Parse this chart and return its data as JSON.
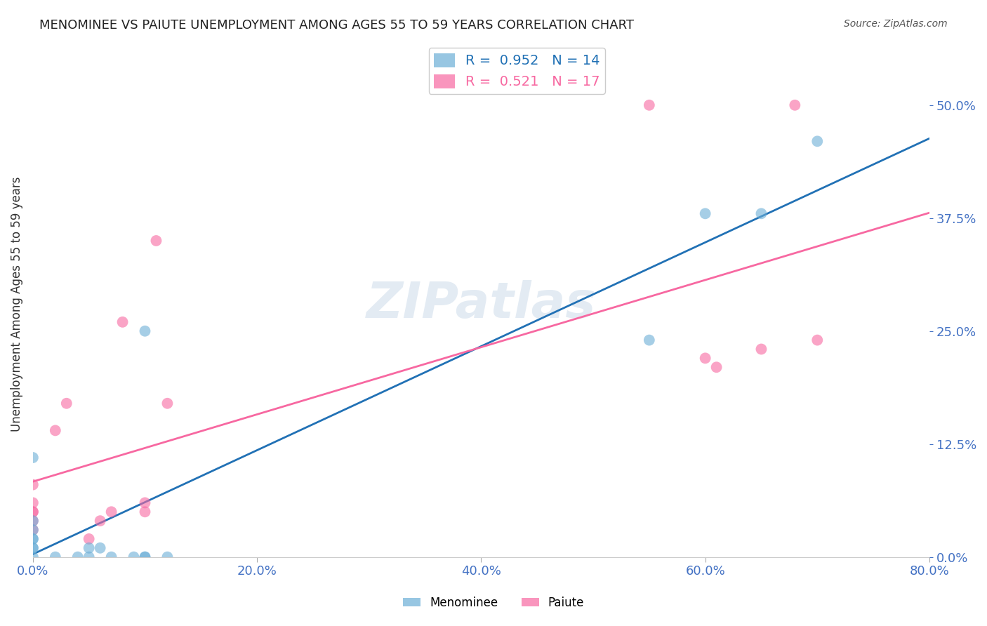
{
  "title": "MENOMINEE VS PAIUTE UNEMPLOYMENT AMONG AGES 55 TO 59 YEARS CORRELATION CHART",
  "source": "Source: ZipAtlas.com",
  "ylabel": "Unemployment Among Ages 55 to 59 years",
  "xlim": [
    0,
    0.8
  ],
  "ylim": [
    0,
    0.56
  ],
  "yticks": [
    0.0,
    0.125,
    0.25,
    0.375,
    0.5
  ],
  "xticks": [
    0.0,
    0.2,
    0.4,
    0.6,
    0.8
  ],
  "menominee_x": [
    0.0,
    0.0,
    0.0,
    0.0,
    0.0,
    0.0,
    0.0,
    0.0,
    0.02,
    0.04,
    0.05,
    0.05,
    0.06,
    0.07,
    0.09,
    0.1,
    0.1,
    0.1,
    0.12,
    0.55,
    0.6,
    0.65,
    0.7
  ],
  "menominee_y": [
    0.0,
    0.01,
    0.01,
    0.02,
    0.02,
    0.03,
    0.04,
    0.11,
    0.0,
    0.0,
    0.0,
    0.01,
    0.01,
    0.0,
    0.0,
    0.0,
    0.0,
    0.25,
    0.0,
    0.24,
    0.38,
    0.38,
    0.46
  ],
  "paiute_x": [
    0.0,
    0.0,
    0.0,
    0.0,
    0.0,
    0.0,
    0.02,
    0.03,
    0.05,
    0.06,
    0.07,
    0.08,
    0.1,
    0.1,
    0.11,
    0.12,
    0.55,
    0.6,
    0.61,
    0.65,
    0.68,
    0.7
  ],
  "paiute_y": [
    0.03,
    0.04,
    0.05,
    0.05,
    0.06,
    0.08,
    0.14,
    0.17,
    0.02,
    0.04,
    0.05,
    0.26,
    0.05,
    0.06,
    0.35,
    0.17,
    0.5,
    0.22,
    0.21,
    0.23,
    0.5,
    0.24
  ],
  "menominee_color": "#6baed6",
  "paiute_color": "#f768a1",
  "menominee_line_color": "#2171b5",
  "paiute_line_color": "#f768a1",
  "watermark": "ZIPatlas",
  "legend_r_menominee": "0.952",
  "legend_n_menominee": "14",
  "legend_r_paiute": "0.521",
  "legend_n_paiute": "17",
  "background_color": "#ffffff",
  "grid_color": "#cccccc"
}
